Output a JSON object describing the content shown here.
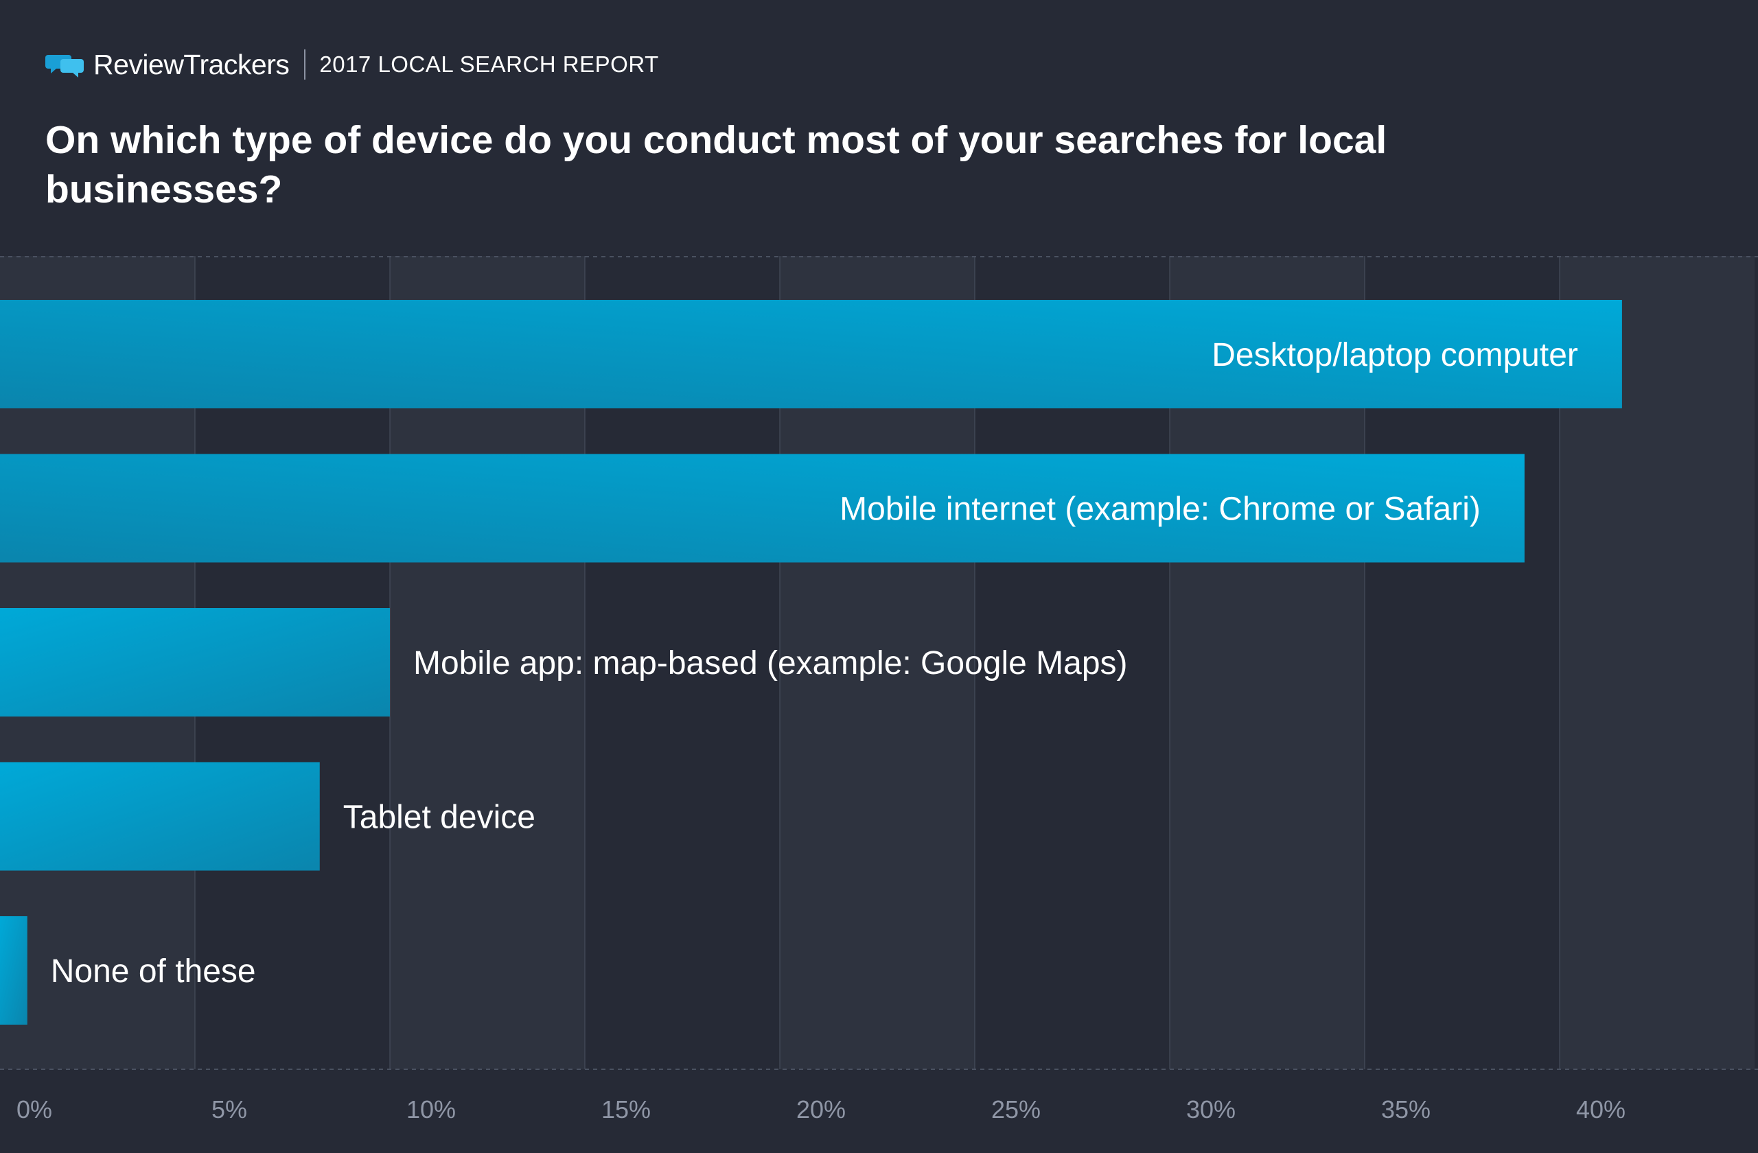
{
  "header": {
    "brand_name": "ReviewTrackers",
    "report_label": "2017 LOCAL SEARCH REPORT",
    "question": "On which type of device do you conduct most of your searches for local businesses?"
  },
  "colors": {
    "background": "#262a36",
    "band_dark": "#262a36",
    "band_light": "#2e333f",
    "bar_light": "#00a9d8",
    "bar_dark": "#0a85ad",
    "gridline": "#4a5160",
    "text": "#ffffff",
    "tick_text": "#8f96a6",
    "brand_icon": "#1a9fd6"
  },
  "chart_data": {
    "type": "bar",
    "orientation": "horizontal",
    "title": "On which type of device do you conduct most of your searches for local businesses?",
    "categories": [
      "Desktop/laptop computer",
      "Mobile internet  (example: Chrome or Safari)",
      "Mobile app: map-based (example: Google Maps)",
      "Tablet device",
      "None of these"
    ],
    "values": [
      41.6,
      39.1,
      10.0,
      8.2,
      0.7
    ],
    "unit": "%",
    "xlim": [
      0,
      45
    ],
    "xticks": [
      0,
      5,
      10,
      15,
      20,
      25,
      30,
      35,
      40
    ],
    "xtick_labels": [
      "0%",
      "5%",
      "10%",
      "15%",
      "20%",
      "25%",
      "30%",
      "35%",
      "40%"
    ],
    "xlabel": "",
    "ylabel": "",
    "grid": true,
    "label_placement": [
      "inside",
      "inside",
      "outside",
      "outside",
      "outside"
    ]
  }
}
